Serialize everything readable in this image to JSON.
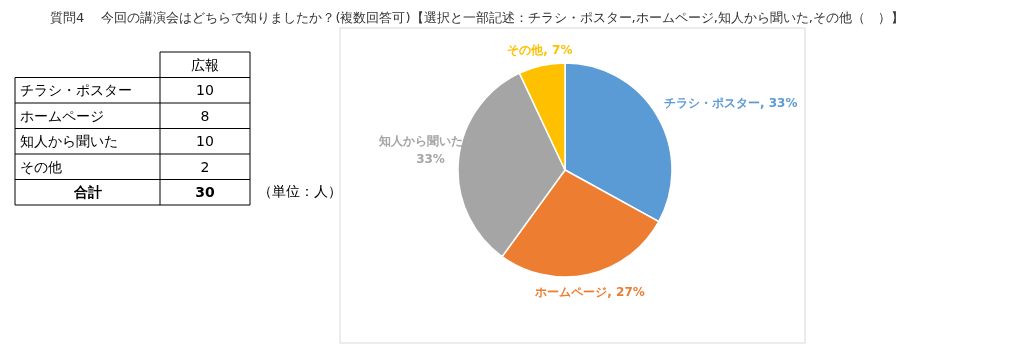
{
  "chart_data": [
    {
      "type": "other",
      "title": "質問4　 今回の講演会はどちらで知りましたか？(複数回答可)【選択と一部記述：チラシ・ポスター,ホームページ,知人から聞いた,その他（　）】",
      "categories": [
        "チラシ・ポスター",
        "ホームページ",
        "知人から聞いた",
        "その他"
      ],
      "series": [
        {
          "name": "広報",
          "values": [
            10,
            8,
            10,
            2
          ]
        }
      ],
      "data_labels": true,
      "totals": [
        "30"
      ],
      "annotations": [
        "合計",
        "（単位：人）"
      ]
    },
    {
      "type": "pie",
      "categories": [
        "チラシ・ポスター",
        "ホームページ",
        "知人から聞いた",
        "その他"
      ],
      "values": [
        33,
        27,
        33,
        7
      ],
      "colors": [
        "#5b9bd5",
        "#ed7d31",
        "#a5a5a5",
        "#ffc000"
      ],
      "value_labels": [
        ", 33%",
        ", 27%",
        ", 33%",
        ", 7%"
      ]
    }
  ]
}
